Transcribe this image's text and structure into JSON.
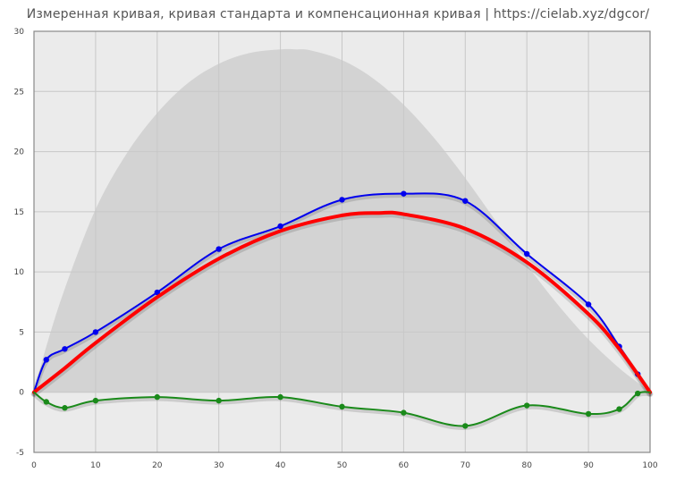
{
  "chart_data": {
    "type": "line",
    "title": "Измеренная кривая, кривая стандарта и компенсационная кривая | https://cielab.xyz/dgcor/",
    "xlabel": "",
    "ylabel": "",
    "xlim": [
      0,
      100
    ],
    "ylim": [
      -5,
      30
    ],
    "x_ticks": [
      0,
      10,
      20,
      30,
      40,
      50,
      60,
      70,
      80,
      90,
      100
    ],
    "y_ticks": [
      -5,
      0,
      5,
      10,
      15,
      20,
      25,
      30
    ],
    "grid": true,
    "legend": "none",
    "colors": {
      "plot_background": "#ebebeb",
      "grid": "#c8c8c8",
      "envelope": "#d3d3d3",
      "measured": "#0000ee",
      "standard": "#ff0000",
      "compensation": "#1a8a1a"
    },
    "envelope": {
      "x": [
        0,
        2,
        5,
        10,
        15,
        20,
        25,
        30,
        35,
        40,
        42.5,
        45,
        50,
        55,
        60,
        65,
        70,
        75,
        80,
        85,
        90,
        95,
        98,
        100
      ],
      "y": [
        0,
        3.8,
        8.6,
        15.2,
        19.8,
        23.2,
        25.7,
        27.3,
        28.2,
        28.5,
        28.5,
        28.4,
        27.6,
        26.1,
        23.9,
        21.1,
        17.8,
        14.2,
        10.6,
        7.3,
        4.4,
        2.0,
        0.8,
        0
      ]
    },
    "series": [
      {
        "x": [
          0,
          2,
          5,
          10,
          20,
          30,
          40,
          50,
          60,
          70,
          80,
          90,
          95,
          98,
          100
        ],
        "y": [
          0,
          2.7,
          3.6,
          5.0,
          8.3,
          11.9,
          13.8,
          16.0,
          16.5,
          15.9,
          11.5,
          7.3,
          3.8,
          1.5,
          0
        ],
        "markers": true
      },
      {
        "x": [
          0,
          5,
          10,
          20,
          30,
          40,
          50,
          56,
          60,
          70,
          80,
          90,
          95,
          100
        ],
        "y": [
          0,
          2.0,
          4.1,
          7.9,
          11.1,
          13.4,
          14.7,
          14.9,
          14.8,
          13.6,
          10.8,
          6.5,
          3.6,
          0
        ],
        "markers": false
      },
      {
        "x": [
          0,
          2,
          5,
          10,
          20,
          30,
          40,
          50,
          60,
          70,
          80,
          90,
          95,
          98,
          100
        ],
        "y": [
          0,
          -0.8,
          -1.3,
          -0.7,
          -0.4,
          -0.7,
          -0.4,
          -1.2,
          -1.7,
          -2.8,
          -1.1,
          -1.8,
          -1.4,
          -0.1,
          0
        ],
        "markers": true
      }
    ]
  }
}
